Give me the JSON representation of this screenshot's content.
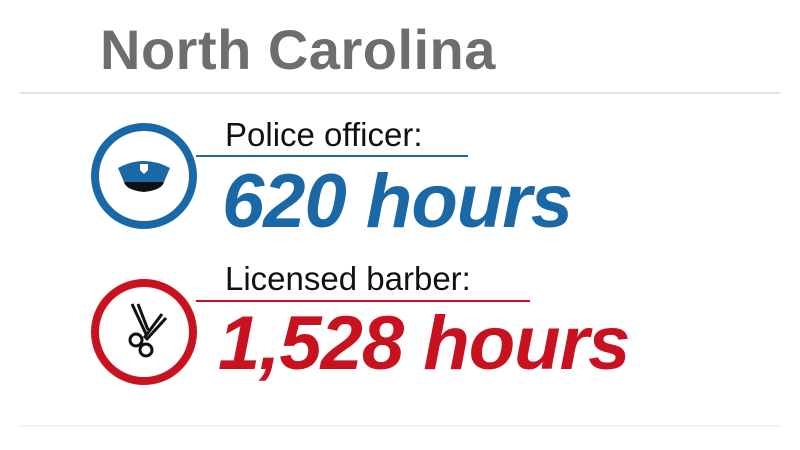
{
  "title": "North Carolina",
  "colors": {
    "police": "#1b68a7",
    "barber": "#c8121f",
    "title": "#6e6e6e"
  },
  "items": [
    {
      "label": "Police officer:",
      "value": "620 hours",
      "icon": "police-cap-icon"
    },
    {
      "label": "Licensed barber:",
      "value": "1,528 hours",
      "icon": "scissors-icon"
    }
  ]
}
